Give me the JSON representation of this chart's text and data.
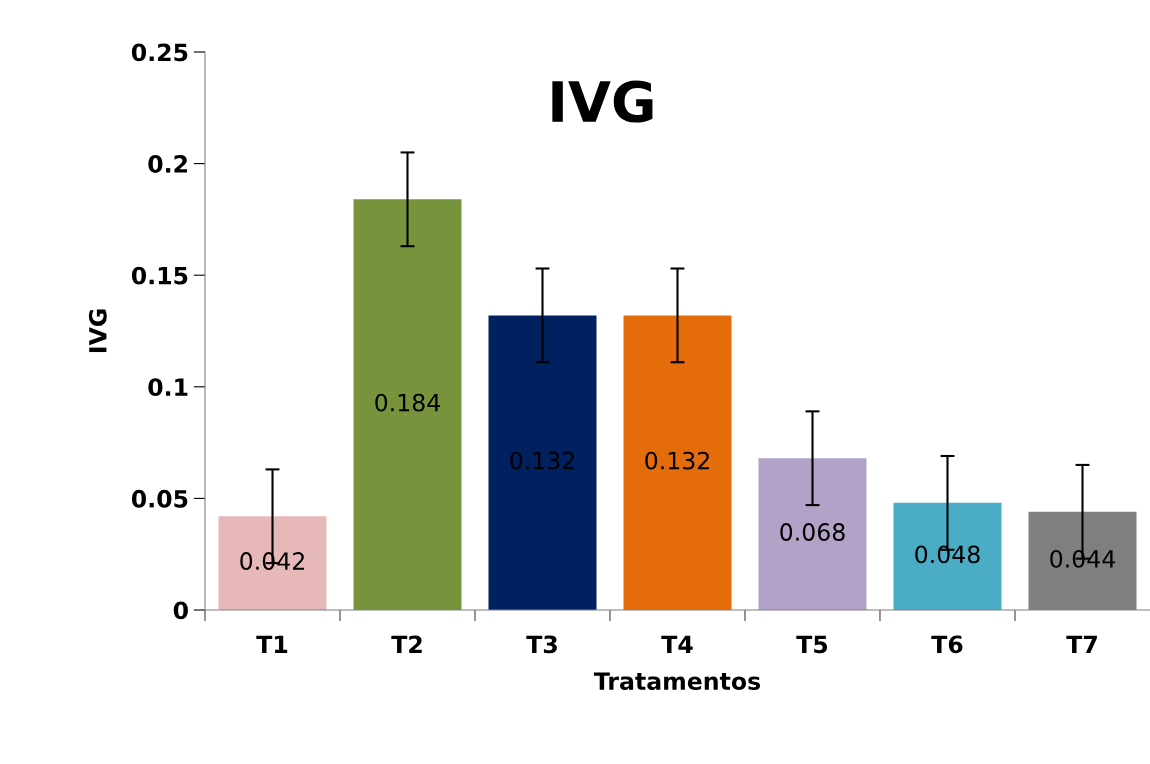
{
  "chart_data": {
    "type": "bar",
    "title": "IVG",
    "xlabel": "Tratamentos",
    "ylabel": "IVG",
    "categories": [
      "T1",
      "T2",
      "T3",
      "T4",
      "T5",
      "T6",
      "T7"
    ],
    "values": [
      0.042,
      0.184,
      0.132,
      0.132,
      0.068,
      0.048,
      0.044
    ],
    "errors": [
      0.021,
      0.021,
      0.021,
      0.021,
      0.021,
      0.021,
      0.021
    ],
    "colors": [
      "#e6b9b8",
      "#77933c",
      "#002060",
      "#e46c0a",
      "#b3a2c7",
      "#4bacc6",
      "#7f7f7f"
    ],
    "ylim": [
      0,
      0.25
    ],
    "yticks": [
      0,
      0.05,
      0.1,
      0.15,
      0.2,
      0.25
    ],
    "data_labels": true,
    "grid": false,
    "legend": false
  }
}
